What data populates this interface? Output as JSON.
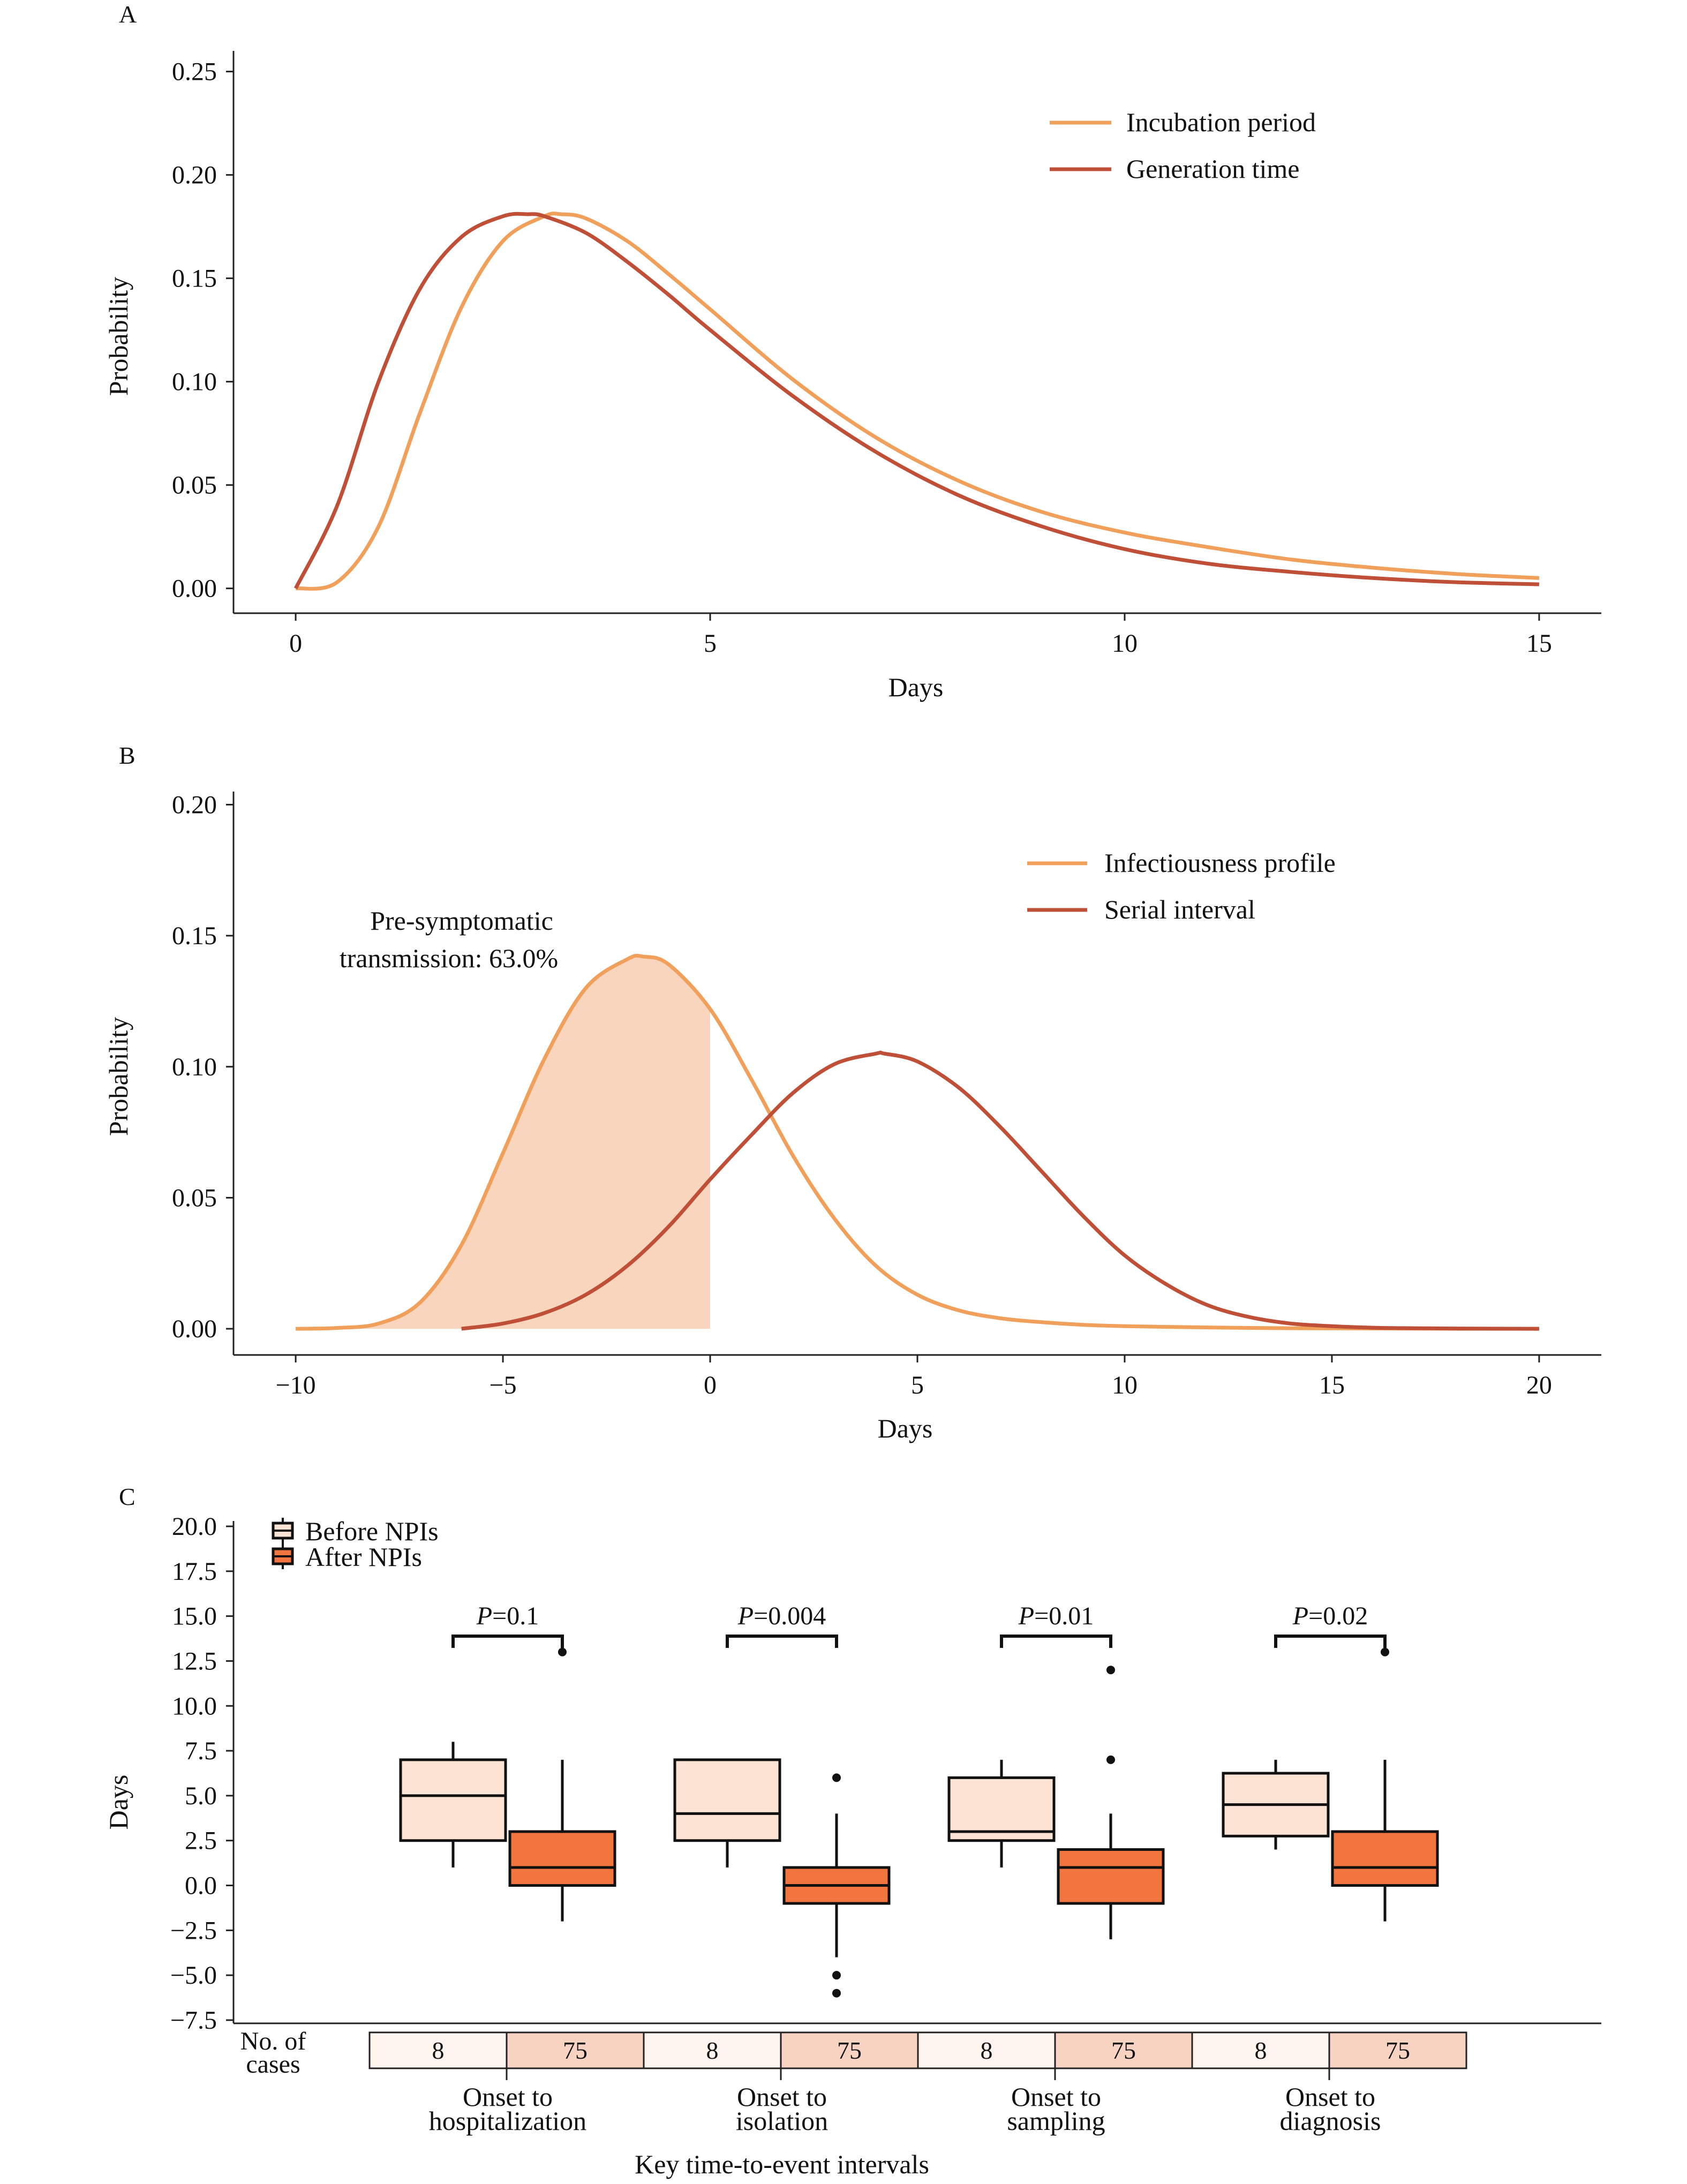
{
  "colors": {
    "incubation": "#F0A05A",
    "generation": "#BF5037",
    "shade": "#F9D5BD",
    "box_before": "#FCE3D3",
    "box_after": "#F2743F",
    "cases_before_cell": "#FEF4EE",
    "cases_after_cell": "#F8D3C1",
    "axis": "#222222"
  },
  "chart_data": [
    {
      "panel": "A",
      "type": "line",
      "xlabel": "Days",
      "ylabel": "Probability",
      "xlim": [
        -0.75,
        15.75
      ],
      "ylim": [
        -0.012,
        0.26
      ],
      "xticks": [
        0,
        5,
        10,
        15
      ],
      "yticks": [
        0.0,
        0.05,
        0.1,
        0.15,
        0.2,
        0.25
      ],
      "ytick_labels": [
        "0.00",
        "0.05",
        "0.10",
        "0.15",
        "0.20",
        "0.25"
      ],
      "legend_position": "top-right",
      "series": [
        {
          "name": "Incubation period",
          "color_key": "incubation",
          "x": [
            0,
            0.5,
            1,
            1.5,
            2,
            2.5,
            3,
            3.2,
            3.5,
            4,
            4.5,
            5,
            6,
            7,
            8,
            9,
            10,
            11,
            12,
            13,
            14,
            15
          ],
          "y": [
            0.0,
            0.003,
            0.03,
            0.085,
            0.136,
            0.168,
            0.18,
            0.181,
            0.179,
            0.168,
            0.152,
            0.135,
            0.101,
            0.073,
            0.052,
            0.037,
            0.027,
            0.02,
            0.014,
            0.01,
            0.007,
            0.005
          ]
        },
        {
          "name": "Generation time",
          "color_key": "generation",
          "x": [
            0,
            0.5,
            1,
            1.5,
            2,
            2.5,
            2.8,
            3,
            3.5,
            4,
            4.5,
            5,
            6,
            7,
            8,
            9,
            10,
            11,
            12,
            13,
            14,
            15
          ],
          "y": [
            0.0,
            0.04,
            0.1,
            0.145,
            0.17,
            0.18,
            0.181,
            0.18,
            0.172,
            0.158,
            0.142,
            0.125,
            0.093,
            0.066,
            0.045,
            0.03,
            0.019,
            0.012,
            0.008,
            0.005,
            0.003,
            0.002
          ]
        }
      ]
    },
    {
      "panel": "B",
      "type": "line",
      "xlabel": "Days",
      "ylabel": "Probability",
      "xlim": [
        -11.5,
        21.5
      ],
      "ylim": [
        -0.01,
        0.205
      ],
      "xticks": [
        -10,
        -5,
        0,
        5,
        10,
        15,
        20
      ],
      "xtick_labels": [
        "−10",
        "−5",
        "0",
        "5",
        "10",
        "15",
        "20"
      ],
      "yticks": [
        0.0,
        0.05,
        0.1,
        0.15,
        0.2
      ],
      "ytick_labels": [
        "0.00",
        "0.05",
        "0.10",
        "0.15",
        "0.20"
      ],
      "legend_position": "top-right",
      "annotation": [
        "Pre-symptomatic",
        "transmission: 63.0%"
      ],
      "shaded_region": {
        "series": "Infectiousness profile",
        "x_from": -10,
        "x_to": 0
      },
      "series": [
        {
          "name": "Infectiousness profile",
          "color_key": "incubation",
          "x": [
            -10,
            -9,
            -8,
            -7,
            -6,
            -5,
            -4,
            -3,
            -2,
            -1.6,
            -1,
            0,
            1,
            2,
            3,
            4,
            5,
            6,
            7,
            8,
            9,
            10,
            12,
            14,
            16,
            18,
            20
          ],
          "y": [
            0.0,
            0.0003,
            0.002,
            0.01,
            0.032,
            0.067,
            0.103,
            0.13,
            0.141,
            0.142,
            0.139,
            0.122,
            0.095,
            0.066,
            0.042,
            0.024,
            0.013,
            0.007,
            0.004,
            0.0025,
            0.0015,
            0.001,
            0.0005,
            0.0002,
            0.0001,
            0.0,
            0.0
          ]
        },
        {
          "name": "Serial interval",
          "color_key": "generation",
          "x": [
            -6,
            -5,
            -4,
            -3,
            -2,
            -1,
            0,
            1,
            2,
            3,
            4,
            4.2,
            5,
            6,
            7,
            8,
            9,
            10,
            11,
            12,
            13,
            14,
            15,
            16,
            17,
            18,
            20
          ],
          "y": [
            0.0,
            0.002,
            0.006,
            0.013,
            0.024,
            0.039,
            0.057,
            0.074,
            0.09,
            0.101,
            0.105,
            0.105,
            0.102,
            0.092,
            0.077,
            0.06,
            0.043,
            0.028,
            0.017,
            0.009,
            0.0045,
            0.002,
            0.001,
            0.0004,
            0.0002,
            0.0001,
            0.0
          ]
        }
      ]
    },
    {
      "panel": "C",
      "type": "box",
      "xlabel": "Key time-to-event intervals",
      "ylabel": "Days",
      "ylim": [
        -7.5,
        20.0
      ],
      "yticks": [
        -7.5,
        -5.0,
        -2.5,
        0.0,
        2.5,
        5.0,
        7.5,
        10.0,
        12.5,
        15.0,
        17.5,
        20.0
      ],
      "ytick_labels": [
        "−7.5",
        "−5.0",
        "−2.5",
        "0.0",
        "2.5",
        "5.0",
        "7.5",
        "10.0",
        "12.5",
        "15.0",
        "17.5",
        "20.0"
      ],
      "legend_position": "top-left",
      "legend": [
        "Before NPIs",
        "After NPIs"
      ],
      "cases_label": [
        "No. of",
        "cases"
      ],
      "groups": [
        {
          "label": [
            "Onset to",
            "hospitalization"
          ],
          "p_value": "=0.1",
          "before": {
            "whisker_low": 1,
            "q1": 2.5,
            "median": 5,
            "q3": 7,
            "whisker_high": 8,
            "outliers": [],
            "n": "8"
          },
          "after": {
            "whisker_low": -2,
            "q1": 0,
            "median": 1,
            "q3": 3,
            "whisker_high": 7,
            "outliers": [
              13
            ],
            "n": "75"
          }
        },
        {
          "label": [
            "Onset to",
            "isolation"
          ],
          "p_value": "=0.004",
          "before": {
            "whisker_low": 1,
            "q1": 2.5,
            "median": 4,
            "q3": 7,
            "whisker_high": 7,
            "outliers": [],
            "n": "8"
          },
          "after": {
            "whisker_low": -4,
            "q1": -1,
            "median": 0,
            "q3": 1,
            "whisker_high": 4,
            "outliers": [
              6,
              -5,
              -6
            ],
            "n": "75"
          }
        },
        {
          "label": [
            "Onset to",
            "sampling"
          ],
          "p_value": "=0.01",
          "before": {
            "whisker_low": 1,
            "q1": 2.5,
            "median": 3,
            "q3": 6,
            "whisker_high": 7,
            "outliers": [],
            "n": "8"
          },
          "after": {
            "whisker_low": -3,
            "q1": -1,
            "median": 1,
            "q3": 2,
            "whisker_high": 4,
            "outliers": [
              7,
              12
            ],
            "n": "75"
          }
        },
        {
          "label": [
            "Onset to",
            "diagnosis"
          ],
          "p_value": "=0.02",
          "before": {
            "whisker_low": 2,
            "q1": 2.75,
            "median": 4.5,
            "q3": 6.25,
            "whisker_high": 7,
            "outliers": [],
            "n": "8"
          },
          "after": {
            "whisker_low": -2,
            "q1": 0,
            "median": 1,
            "q3": 3,
            "whisker_high": 7,
            "outliers": [
              13
            ],
            "n": "75"
          }
        }
      ],
      "p_prefix": "P"
    }
  ]
}
